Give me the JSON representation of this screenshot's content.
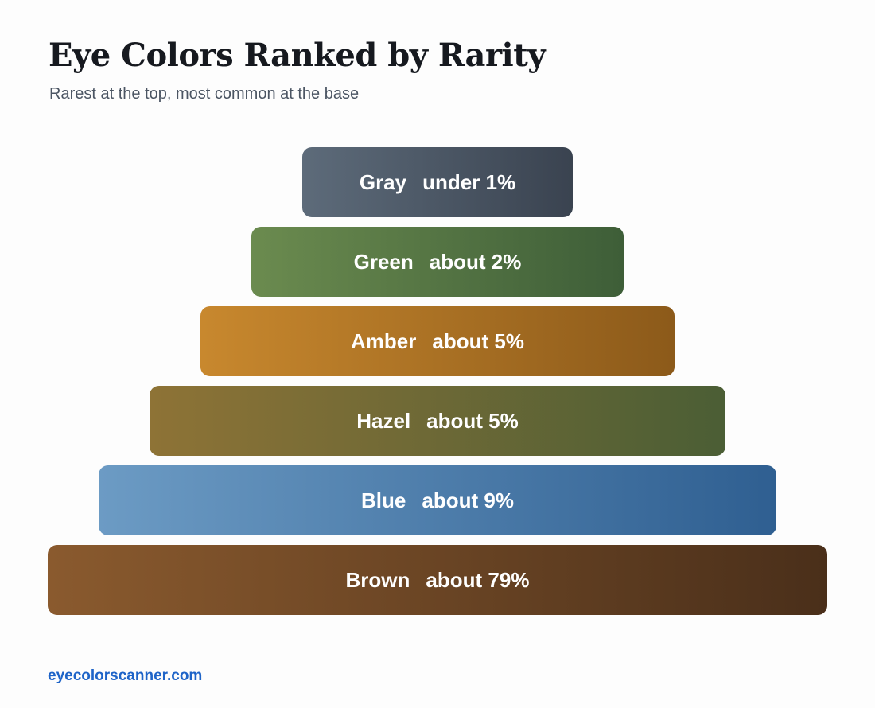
{
  "header": {
    "title": "Eye Colors Ranked by Rarity",
    "subtitle": "Rarest at the top, most common at the base"
  },
  "footer": {
    "site": "eyecolorscanner.com",
    "link_color": "#1e64c8"
  },
  "chart_data": {
    "type": "bar",
    "orientation": "pyramid",
    "title": "Eye Colors Ranked by Rarity",
    "subtitle": "Rarest at the top, most common at the base",
    "categories": [
      "Gray",
      "Green",
      "Amber",
      "Hazel",
      "Blue",
      "Brown"
    ],
    "value_labels": [
      "under 1%",
      "about 2%",
      "about 5%",
      "about 5%",
      "about 9%",
      "about 79%"
    ],
    "rank": [
      1,
      2,
      3,
      4,
      5,
      6
    ],
    "colors": [
      [
        "#5d6b7a",
        "#3a4350"
      ],
      [
        "#6b8b4f",
        "#3e5e38"
      ],
      [
        "#c8882e",
        "#8c5a1a"
      ],
      [
        "#8e7336",
        "#4b5e35"
      ],
      [
        "#6c9bc4",
        "#2f5f91"
      ],
      [
        "#8a5a2e",
        "#4a2f1a"
      ]
    ]
  }
}
